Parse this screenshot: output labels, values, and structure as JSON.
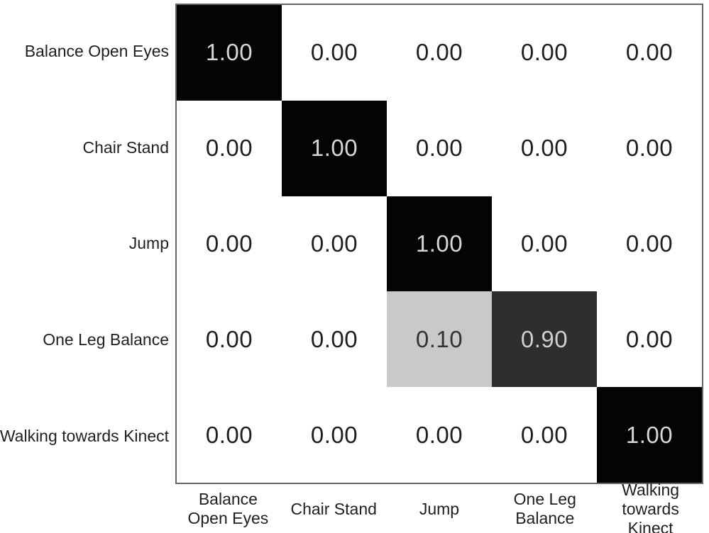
{
  "chart_data": {
    "type": "heatmap",
    "title": "",
    "description_visible": false,
    "row_labels": [
      "Balance Open Eyes",
      "Chair Stand",
      "Jump",
      "One Leg Balance",
      "Walking towards Kinect"
    ],
    "col_labels": [
      "Balance\nOpen Eyes",
      "Chair Stand",
      "Jump",
      "One Leg\nBalance",
      "Walking\ntowards Kinect"
    ],
    "matrix": [
      [
        1.0,
        0.0,
        0.0,
        0.0,
        0.0
      ],
      [
        0.0,
        1.0,
        0.0,
        0.0,
        0.0
      ],
      [
        0.0,
        0.0,
        1.0,
        0.0,
        0.0
      ],
      [
        0.0,
        0.0,
        0.1,
        0.9,
        0.0
      ],
      [
        0.0,
        0.0,
        0.0,
        0.0,
        1.0
      ]
    ],
    "value_decimals": 2,
    "colormap": {
      "1.00": {
        "bg": "#040404",
        "text": "#d6d6d6"
      },
      "0.90": {
        "bg": "#2e2e2e",
        "text": "#cfcfcf"
      },
      "0.10": {
        "bg": "#c9c9c9",
        "text": "#333333"
      },
      "0.00": {
        "bg": "#ffffff",
        "text": "#1f1f1f"
      }
    },
    "border_color": "#666666",
    "grid": false,
    "legend": false
  }
}
